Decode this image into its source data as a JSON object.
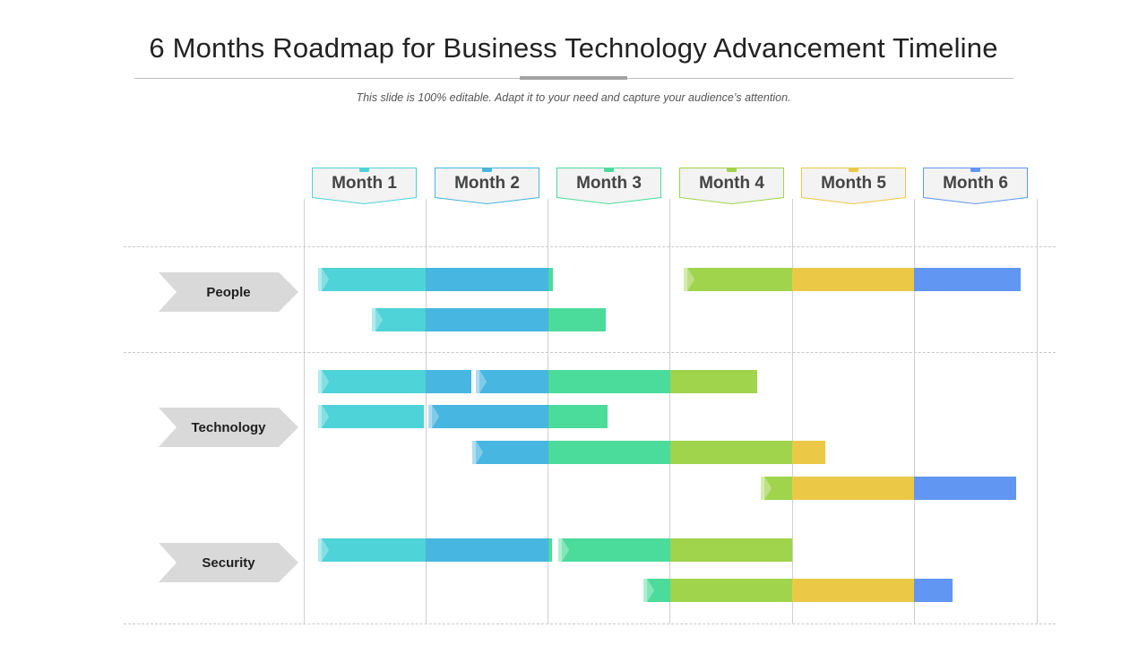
{
  "title": "6 Months Roadmap for Business Technology Advancement Timeline",
  "subtitle": "This slide is 100% editable. Adapt it to your need and capture your audience’s  attention.",
  "months": [
    {
      "label": "Month 1",
      "color": "#4dd3d8"
    },
    {
      "label": "Month 2",
      "color": "#47b6e0"
    },
    {
      "label": "Month 3",
      "color": "#4bdb9b"
    },
    {
      "label": "Month 4",
      "color": "#9fd44c"
    },
    {
      "label": "Month 5",
      "color": "#ebc947"
    },
    {
      "label": "Month 6",
      "color": "#6196f2"
    }
  ],
  "groups": [
    {
      "label": "People"
    },
    {
      "label": "Technology"
    },
    {
      "label": "Security"
    }
  ],
  "bars": [
    {
      "group": "People",
      "start": 0.12,
      "end": 2.04
    },
    {
      "group": "People",
      "start": 3.11,
      "end": 5.87
    },
    {
      "group": "People",
      "start": 0.56,
      "end": 2.47
    },
    {
      "group": "Technology",
      "start": 0.12,
      "end": 1.37
    },
    {
      "group": "Technology",
      "start": 1.41,
      "end": 3.71
    },
    {
      "group": "Technology",
      "start": 0.12,
      "end": 0.98
    },
    {
      "group": "Technology",
      "start": 1.02,
      "end": 2.49
    },
    {
      "group": "Technology",
      "start": 1.38,
      "end": 4.27
    },
    {
      "group": "Technology",
      "start": 3.74,
      "end": 5.83
    },
    {
      "group": "Security",
      "start": 0.12,
      "end": 2.03
    },
    {
      "group": "Security",
      "start": 2.08,
      "end": 4.0
    },
    {
      "group": "Security",
      "start": 2.78,
      "end": 5.31
    }
  ]
}
